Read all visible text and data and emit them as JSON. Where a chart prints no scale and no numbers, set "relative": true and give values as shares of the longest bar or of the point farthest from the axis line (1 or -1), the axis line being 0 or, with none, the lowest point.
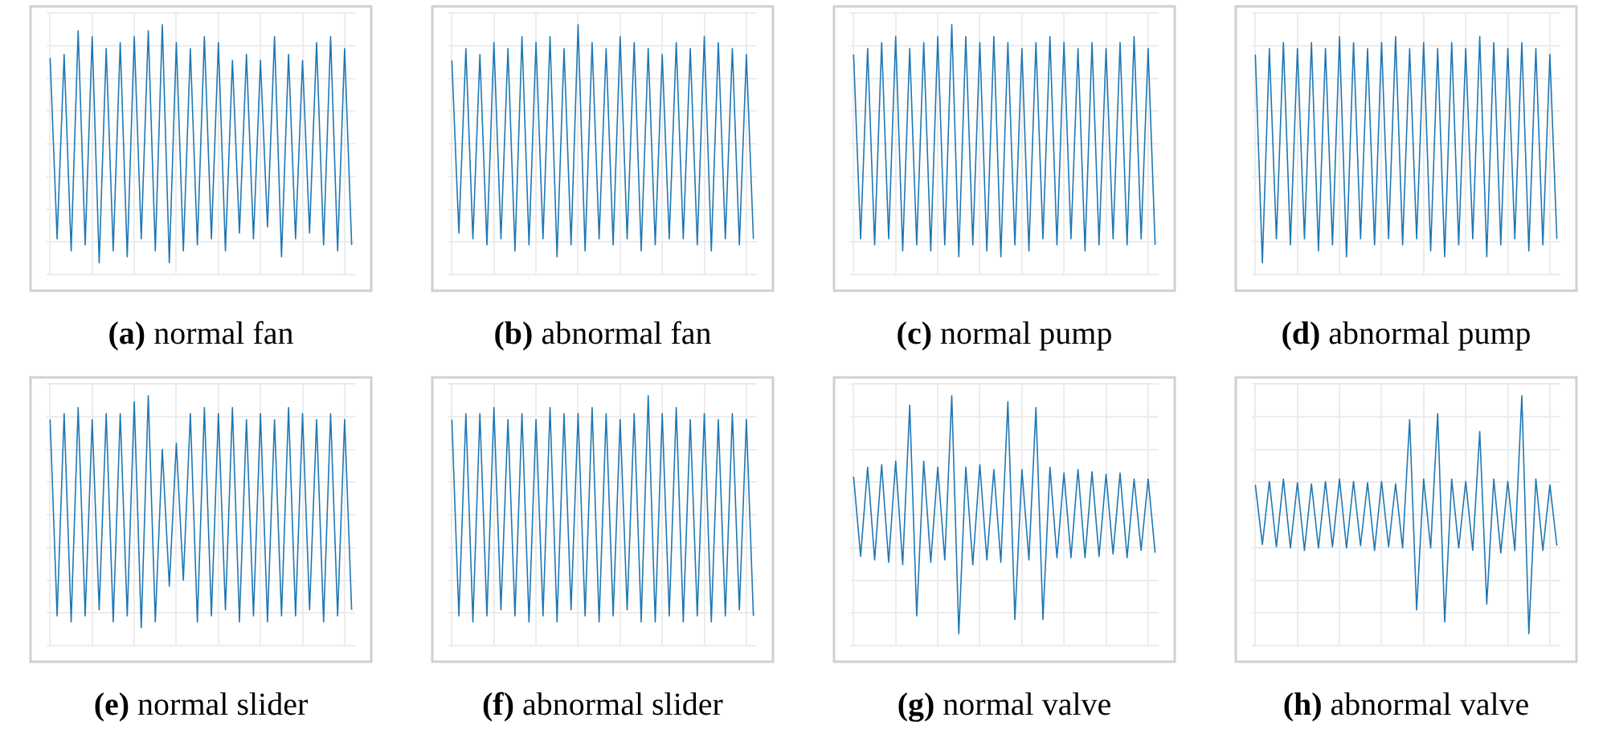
{
  "chart_data": [
    {
      "type": "line",
      "title": "(a) normal fan",
      "relative": true,
      "grid": true,
      "tick_labels": false,
      "categories": [
        null,
        null,
        null,
        null,
        null,
        null,
        null,
        null,
        null,
        null,
        null,
        null,
        null,
        null,
        null,
        null,
        null,
        null,
        null,
        null,
        null,
        null,
        null,
        null,
        null,
        null,
        null,
        null,
        null,
        null,
        null,
        null,
        null,
        null,
        null,
        null,
        null,
        null,
        null,
        null,
        null,
        null,
        null,
        null
      ],
      "color": "#1f77b4",
      "values": [
        0.72,
        -0.8,
        0.75,
        -0.9,
        0.95,
        -0.85,
        0.9,
        -1,
        0.8,
        -0.9,
        0.85,
        -0.95,
        0.9,
        -0.8,
        0.95,
        -0.9,
        1,
        -1,
        0.85,
        -0.9,
        0.8,
        -0.85,
        0.9,
        -0.8,
        0.85,
        -0.9,
        0.7,
        -0.75,
        0.75,
        -0.8,
        0.7,
        -0.7,
        0.9,
        -0.95,
        0.75,
        -0.8,
        0.7,
        -0.75,
        0.85,
        -0.85,
        0.9,
        -0.9,
        0.8,
        -0.85
      ]
    },
    {
      "type": "line",
      "title": "(b) abnormal fan",
      "relative": true,
      "grid": true,
      "tick_labels": false,
      "categories": [
        null,
        null,
        null,
        null,
        null,
        null,
        null,
        null,
        null,
        null,
        null,
        null,
        null,
        null,
        null,
        null,
        null,
        null,
        null,
        null,
        null,
        null,
        null,
        null,
        null,
        null,
        null,
        null,
        null,
        null,
        null,
        null,
        null,
        null,
        null,
        null,
        null,
        null,
        null,
        null,
        null,
        null,
        null,
        null
      ],
      "color": "#1f77b4",
      "values": [
        0.7,
        -0.75,
        0.8,
        -0.8,
        0.75,
        -0.85,
        0.85,
        -0.8,
        0.8,
        -0.9,
        0.9,
        -0.85,
        0.85,
        -0.8,
        0.9,
        -0.95,
        0.8,
        -0.85,
        1,
        -0.9,
        0.85,
        -0.8,
        0.8,
        -0.85,
        0.9,
        -0.8,
        0.85,
        -0.9,
        0.8,
        -0.85,
        0.75,
        -0.8,
        0.85,
        -0.8,
        0.8,
        -0.85,
        0.9,
        -0.9,
        0.85,
        -0.8,
        0.8,
        -0.85,
        0.75,
        -0.8
      ]
    },
    {
      "type": "line",
      "title": "(c) normal pump",
      "relative": true,
      "grid": true,
      "tick_labels": false,
      "categories": [
        null,
        null,
        null,
        null,
        null,
        null,
        null,
        null,
        null,
        null,
        null,
        null,
        null,
        null,
        null,
        null,
        null,
        null,
        null,
        null,
        null,
        null,
        null,
        null,
        null,
        null,
        null,
        null,
        null,
        null,
        null,
        null,
        null,
        null,
        null,
        null,
        null,
        null,
        null,
        null,
        null,
        null,
        null,
        null
      ],
      "color": "#1f77b4",
      "values": [
        0.75,
        -0.8,
        0.8,
        -0.85,
        0.85,
        -0.8,
        0.9,
        -0.9,
        0.8,
        -0.85,
        0.85,
        -0.9,
        0.9,
        -0.85,
        1,
        -0.95,
        0.9,
        -0.85,
        0.85,
        -0.9,
        0.9,
        -0.95,
        0.85,
        -0.85,
        0.8,
        -0.9,
        0.85,
        -0.8,
        0.9,
        -0.85,
        0.85,
        -0.8,
        0.8,
        -0.9,
        0.85,
        -0.85,
        0.8,
        -0.8,
        0.85,
        -0.85,
        0.9,
        -0.8,
        0.8,
        -0.85
      ]
    },
    {
      "type": "line",
      "title": "(d) abnormal pump",
      "relative": true,
      "grid": true,
      "tick_labels": false,
      "categories": [
        null,
        null,
        null,
        null,
        null,
        null,
        null,
        null,
        null,
        null,
        null,
        null,
        null,
        null,
        null,
        null,
        null,
        null,
        null,
        null,
        null,
        null,
        null,
        null,
        null,
        null,
        null,
        null,
        null,
        null,
        null,
        null,
        null,
        null,
        null,
        null,
        null,
        null,
        null,
        null,
        null,
        null,
        null,
        null
      ],
      "color": "#1f77b4",
      "values": [
        0.75,
        -1,
        0.8,
        -0.8,
        0.85,
        -0.85,
        0.8,
        -0.8,
        0.85,
        -0.9,
        0.8,
        -0.85,
        0.9,
        -0.95,
        0.85,
        -0.8,
        0.8,
        -0.85,
        0.85,
        -0.8,
        0.9,
        -0.85,
        0.8,
        -0.8,
        0.85,
        -0.9,
        0.8,
        -0.95,
        0.85,
        -0.85,
        0.8,
        -0.8,
        0.9,
        -0.95,
        0.85,
        -0.85,
        0.8,
        -0.8,
        0.85,
        -0.9,
        0.8,
        -0.85,
        0.75,
        -0.8
      ]
    },
    {
      "type": "line",
      "title": "(e) normal slider",
      "relative": true,
      "grid": true,
      "tick_labels": false,
      "categories": [
        null,
        null,
        null,
        null,
        null,
        null,
        null,
        null,
        null,
        null,
        null,
        null,
        null,
        null,
        null,
        null,
        null,
        null,
        null,
        null,
        null,
        null,
        null,
        null,
        null,
        null,
        null,
        null,
        null,
        null,
        null,
        null,
        null,
        null,
        null,
        null,
        null,
        null,
        null,
        null,
        null,
        null,
        null,
        null
      ],
      "color": "#1f77b4",
      "values": [
        0.8,
        -0.85,
        0.85,
        -0.9,
        0.9,
        -0.85,
        0.8,
        -0.8,
        0.85,
        -0.9,
        0.85,
        -0.85,
        0.95,
        -0.95,
        1,
        -0.9,
        0.55,
        -0.6,
        0.6,
        -0.55,
        0.85,
        -0.9,
        0.9,
        -0.85,
        0.85,
        -0.8,
        0.9,
        -0.9,
        0.8,
        -0.85,
        0.85,
        -0.9,
        0.8,
        -0.85,
        0.9,
        -0.85,
        0.85,
        -0.8,
        0.8,
        -0.9,
        0.85,
        -0.85,
        0.8,
        -0.8
      ]
    },
    {
      "type": "line",
      "title": "(f) abnormal slider",
      "relative": true,
      "grid": true,
      "tick_labels": false,
      "categories": [
        null,
        null,
        null,
        null,
        null,
        null,
        null,
        null,
        null,
        null,
        null,
        null,
        null,
        null,
        null,
        null,
        null,
        null,
        null,
        null,
        null,
        null,
        null,
        null,
        null,
        null,
        null,
        null,
        null,
        null,
        null,
        null,
        null,
        null,
        null,
        null,
        null,
        null,
        null,
        null,
        null,
        null,
        null,
        null
      ],
      "color": "#1f77b4",
      "values": [
        0.8,
        -0.85,
        0.85,
        -0.9,
        0.85,
        -0.85,
        0.9,
        -0.8,
        0.8,
        -0.85,
        0.85,
        -0.9,
        0.8,
        -0.85,
        0.9,
        -0.9,
        0.85,
        -0.8,
        0.85,
        -0.85,
        0.9,
        -0.9,
        0.85,
        -0.85,
        0.8,
        -0.8,
        0.85,
        -0.9,
        1,
        -0.9,
        0.85,
        -0.85,
        0.9,
        -0.9,
        0.8,
        -0.85,
        0.85,
        -0.9,
        0.8,
        -0.85,
        0.85,
        -0.8,
        0.8,
        -0.85
      ]
    },
    {
      "type": "line",
      "title": "(g) normal valve",
      "relative": true,
      "grid": true,
      "tick_labels": false,
      "categories": [
        null,
        null,
        null,
        null,
        null,
        null,
        null,
        null,
        null,
        null,
        null,
        null,
        null,
        null,
        null,
        null,
        null,
        null,
        null,
        null,
        null,
        null,
        null,
        null,
        null,
        null,
        null,
        null,
        null,
        null,
        null,
        null,
        null,
        null,
        null,
        null,
        null,
        null,
        null,
        null,
        null,
        null,
        null,
        null
      ],
      "color": "#1f77b4",
      "values": [
        0.32,
        -0.35,
        0.4,
        -0.38,
        0.42,
        -0.4,
        0.45,
        -0.42,
        0.92,
        -0.85,
        0.45,
        -0.4,
        0.4,
        -0.38,
        1,
        -1,
        0.4,
        -0.42,
        0.42,
        -0.38,
        0.38,
        -0.4,
        0.95,
        -0.88,
        0.38,
        -0.38,
        0.9,
        -0.88,
        0.4,
        -0.36,
        0.35,
        -0.36,
        0.38,
        -0.36,
        0.36,
        -0.35,
        0.34,
        -0.33,
        0.35,
        -0.36,
        0.3,
        -0.3,
        0.3,
        -0.32
      ]
    },
    {
      "type": "line",
      "title": "(h) abnormal valve",
      "relative": true,
      "grid": true,
      "tick_labels": false,
      "categories": [
        null,
        null,
        null,
        null,
        null,
        null,
        null,
        null,
        null,
        null,
        null,
        null,
        null,
        null,
        null,
        null,
        null,
        null,
        null,
        null,
        null,
        null,
        null,
        null,
        null,
        null,
        null,
        null,
        null,
        null,
        null,
        null,
        null,
        null,
        null,
        null,
        null,
        null,
        null,
        null,
        null,
        null,
        null,
        null
      ],
      "color": "#1f77b4",
      "values": [
        0.25,
        -0.25,
        0.28,
        -0.27,
        0.3,
        -0.28,
        0.27,
        -0.3,
        0.26,
        -0.28,
        0.28,
        -0.27,
        0.3,
        -0.28,
        0.28,
        -0.26,
        0.27,
        -0.3,
        0.28,
        -0.27,
        0.26,
        -0.28,
        0.8,
        -0.8,
        0.3,
        -0.28,
        0.85,
        -0.9,
        0.3,
        -0.28,
        0.28,
        -0.3,
        0.7,
        -0.75,
        0.3,
        -0.32,
        0.28,
        -0.3,
        1,
        -1,
        0.3,
        -0.3,
        0.25,
        -0.26
      ]
    }
  ]
}
